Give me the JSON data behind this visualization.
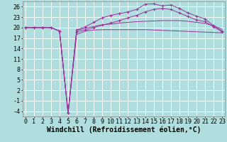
{
  "title": "",
  "xlabel": "Windchill (Refroidissement éolien,°C)",
  "background_color": "#b0dede",
  "grid_color": "#ffffff",
  "line_color": "#993399",
  "x_ticks": [
    0,
    1,
    2,
    3,
    4,
    5,
    6,
    7,
    8,
    9,
    10,
    11,
    12,
    13,
    14,
    15,
    16,
    17,
    18,
    19,
    20,
    21,
    22,
    23
  ],
  "y_ticks": [
    -4,
    -1,
    2,
    5,
    8,
    11,
    14,
    17,
    20,
    23,
    26
  ],
  "xlim": [
    -0.3,
    23.3
  ],
  "ylim": [
    -5.5,
    27.5
  ],
  "curves": [
    {
      "y": [
        20.0,
        20.0,
        20.0,
        20.0,
        19.0,
        -4.5,
        18.0,
        19.0,
        19.3,
        19.4,
        19.4,
        19.4,
        19.4,
        19.4,
        19.4,
        19.3,
        19.2,
        19.1,
        19.0,
        18.9,
        18.8,
        18.7,
        18.6,
        18.5
      ],
      "marker": false
    },
    {
      "y": [
        20.0,
        20.0,
        20.0,
        20.0,
        19.0,
        -4.5,
        19.2,
        19.8,
        20.3,
        20.8,
        21.0,
        21.3,
        21.5,
        21.7,
        21.8,
        21.9,
        22.0,
        22.0,
        22.0,
        21.8,
        21.5,
        21.2,
        20.5,
        19.5
      ],
      "marker": false
    },
    {
      "y": [
        20.0,
        20.0,
        20.0,
        20.0,
        19.0,
        -4.5,
        19.3,
        20.2,
        21.5,
        22.8,
        23.5,
        24.0,
        24.5,
        25.2,
        26.7,
        26.8,
        26.2,
        26.5,
        25.5,
        24.2,
        23.3,
        22.5,
        20.5,
        19.0
      ],
      "marker": true
    },
    {
      "y": [
        20.0,
        20.0,
        20.0,
        20.0,
        19.0,
        -4.5,
        18.8,
        19.3,
        20.0,
        20.7,
        21.3,
        22.0,
        22.8,
        23.5,
        24.5,
        25.2,
        25.5,
        25.2,
        24.2,
        23.2,
        22.2,
        21.7,
        20.2,
        18.8
      ],
      "marker": true
    }
  ],
  "font_family": "monospace",
  "tick_fontsize": 6,
  "xlabel_fontsize": 7
}
